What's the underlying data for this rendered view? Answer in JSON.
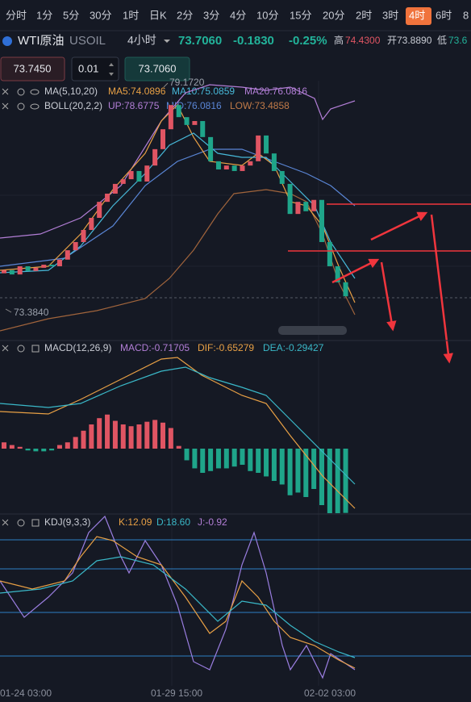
{
  "tabs": [
    "分时",
    "1分",
    "5分",
    "30分",
    "1时",
    "日K",
    "2分",
    "3分",
    "4分",
    "10分",
    "15分",
    "20分",
    "2时",
    "3时",
    "4时",
    "6时",
    "8"
  ],
  "active_tab": 14,
  "symbol": {
    "name": "WTI原油",
    "code": "USOIL",
    "period": "4小时",
    "price": "73.7060",
    "change": "-0.1830",
    "change_pct": "-0.25%",
    "high_label": "高",
    "high": "74.4300",
    "open_label": "开",
    "open": "73.8890",
    "low_label": "低",
    "low": "73.6"
  },
  "inputs": {
    "sell": "73.7450",
    "lot": "0.01",
    "buy": "73.7060"
  },
  "ma": {
    "name": "MA(5,10,20)",
    "ma5": "MA5:74.0896",
    "ma10": "MA10:75.0859",
    "ma20": "MA20:76.0816"
  },
  "boll": {
    "name": "BOLL(20,2,2)",
    "up": "UP:78.6775",
    "mid": "MID:76.0816",
    "low": "LOW:73.4858"
  },
  "price_high": {
    "value": 79.172,
    "label": "79.1720"
  },
  "price_low": {
    "value": 73.384,
    "label": "73.3840"
  },
  "candles": {
    "open": [
      74.3,
      74.38,
      74.27,
      74.48,
      74.36,
      74.44,
      74.52,
      74.48,
      74.65,
      74.89,
      75.1,
      75.41,
      75.72,
      76.13,
      76.34,
      76.59,
      76.71,
      76.92,
      76.65,
      77.06,
      77.48,
      77.99,
      78.61,
      78.3,
      78.1,
      78.2,
      77.79,
      77.17,
      76.96,
      77.06,
      76.92,
      77.06,
      77.17,
      77.83,
      77.37,
      76.92,
      76.59,
      75.82,
      76.13,
      75.89,
      76.18,
      75.1,
      74.48,
      74.07
    ],
    "close": [
      74.38,
      74.27,
      74.48,
      74.36,
      74.44,
      74.52,
      74.48,
      74.65,
      74.89,
      75.1,
      75.41,
      75.72,
      76.13,
      76.34,
      76.59,
      76.71,
      76.92,
      76.65,
      77.06,
      77.48,
      77.99,
      78.61,
      78.3,
      78.1,
      78.2,
      77.79,
      77.17,
      76.96,
      77.06,
      76.92,
      77.06,
      77.17,
      77.83,
      77.37,
      76.92,
      76.59,
      75.82,
      76.13,
      75.89,
      76.18,
      75.1,
      74.48,
      74.07,
      73.71
    ]
  },
  "macd": {
    "name": "MACD(12,26,9)",
    "macd": "MACD:-0.71705",
    "dif": "DIF:-0.65279",
    "dea": "DEA:-0.29427",
    "hist": [
      0.07,
      0.04,
      0.02,
      -0.02,
      -0.03,
      -0.03,
      -0.02,
      0.04,
      0.07,
      0.13,
      0.2,
      0.27,
      0.34,
      0.38,
      0.31,
      0.27,
      0.25,
      0.27,
      0.3,
      0.32,
      0.29,
      0.23,
      0.03,
      -0.13,
      -0.22,
      -0.27,
      -0.25,
      -0.22,
      -0.22,
      -0.2,
      -0.18,
      -0.25,
      -0.27,
      -0.31,
      -0.36,
      -0.4,
      -0.52,
      -0.49,
      -0.54,
      -0.45,
      -0.63,
      -0.72,
      -0.72,
      -0.71705
    ]
  },
  "kdj": {
    "name": "KDJ(9,3,3)",
    "k": "K:12.09",
    "d": "D:18.60",
    "j": "J:-0.92"
  },
  "dates": [
    "01-24 03:00",
    "01-29 15:00",
    "02-02 03:00"
  ]
}
